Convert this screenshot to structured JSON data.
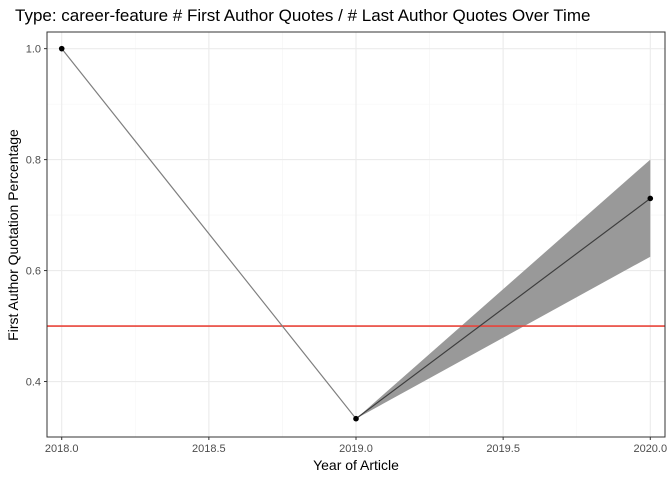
{
  "chart_data": {
    "type": "line",
    "title": "Type: career-feature # First Author Quotes /  # Last Author Quotes Over Time",
    "xlabel": "Year of Article",
    "ylabel": "First Author Quotation Percentage",
    "xlim": [
      2017.95,
      2020.05
    ],
    "ylim": [
      0.3,
      1.03
    ],
    "x_ticks": [
      "2018.0",
      "2018.5",
      "2019.0",
      "2019.5",
      "2020.0"
    ],
    "y_ticks": [
      "0.4",
      "0.6",
      "0.8",
      "1.0"
    ],
    "grid": true,
    "series": [
      {
        "x": [
          2018,
          2019,
          2020
        ],
        "y": [
          1.0,
          0.333,
          0.73
        ]
      }
    ],
    "smooth": {
      "x": [
        2019,
        2020
      ],
      "y": [
        0.333,
        0.73
      ],
      "lower": [
        0.333,
        0.625
      ],
      "upper": [
        0.333,
        0.8
      ]
    },
    "reference_line": {
      "y": 0.5
    },
    "colors": {
      "line": "#7f7f7f",
      "points": "#000000",
      "smooth_line": "#3d3d3d",
      "ribbon": "#999999",
      "reference": "#e8443a",
      "grid_major": "#ebebeb",
      "grid_minor": "#f5f5f5",
      "panel_border": "#333333"
    }
  }
}
